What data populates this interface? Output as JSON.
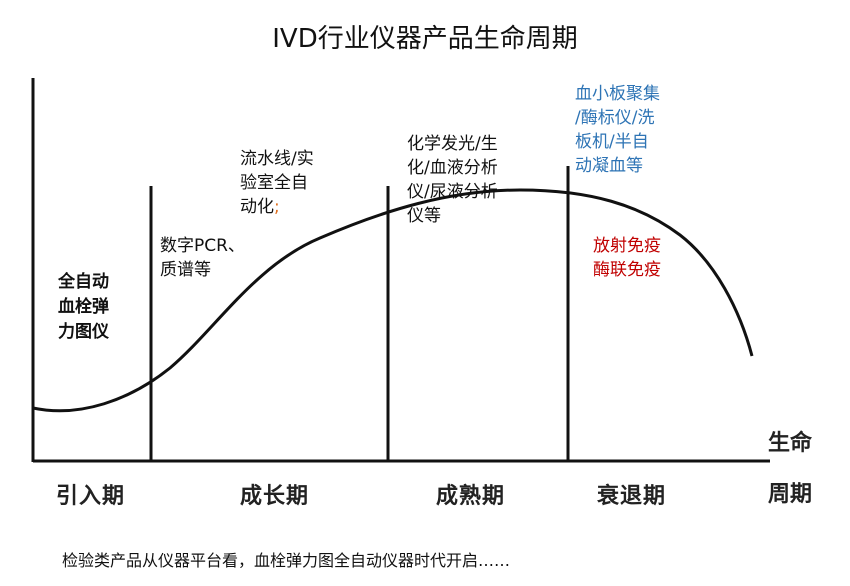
{
  "title": "IVD行业仪器产品生命周期",
  "stages": [
    "引入期",
    "成长期",
    "成熟期",
    "衰退期"
  ],
  "axis": {
    "x_label_line1": "生命",
    "x_label_line2": "周期"
  },
  "annotations": {
    "intro": [
      "全自动",
      "血栓弹",
      "力图仪"
    ],
    "growth_a": [
      "数字PCR、",
      "质谱等"
    ],
    "growth_b": [
      "流水线/实",
      "验室全自",
      "动化"
    ],
    "growth_b_suffix": ";",
    "mature": [
      "化学发光/生",
      "化/血液分析",
      "仪/尿液分析",
      "仪等"
    ],
    "late_blue": [
      "血小板聚集",
      "/酶标仪/洗",
      "板机/半自",
      "动凝血等"
    ],
    "late_red": [
      "放射免疫",
      "酶联免疫"
    ]
  },
  "footer": "检验类产品从仪器平台看，血栓弹力图全自动仪器时代开启……",
  "colors": {
    "blue": "#2e74b5",
    "red": "#c00000",
    "orange": "#e07020",
    "line": "#111111"
  }
}
